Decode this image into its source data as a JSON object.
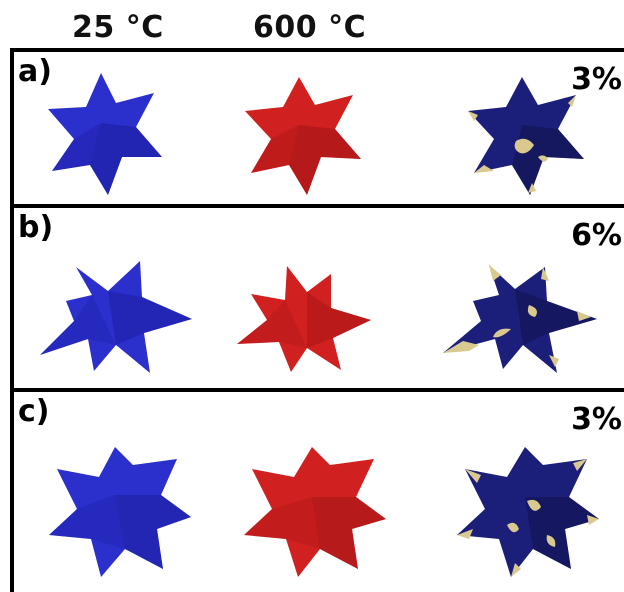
{
  "column_headers": [
    "25 °C",
    "600 °C"
  ],
  "colors": {
    "blue": "#2b2fcc",
    "blue_dark": "#1a1d9a",
    "red": "#d12020",
    "red_dark": "#9e1414",
    "navy": "#1c1f7a",
    "navy_dark": "#10124d",
    "gold": "#d9c98e"
  },
  "panels": [
    {
      "label": "a)",
      "percent": "3%"
    },
    {
      "label": "b)",
      "percent": "6%"
    },
    {
      "label": "c)",
      "percent": "3%"
    }
  ]
}
